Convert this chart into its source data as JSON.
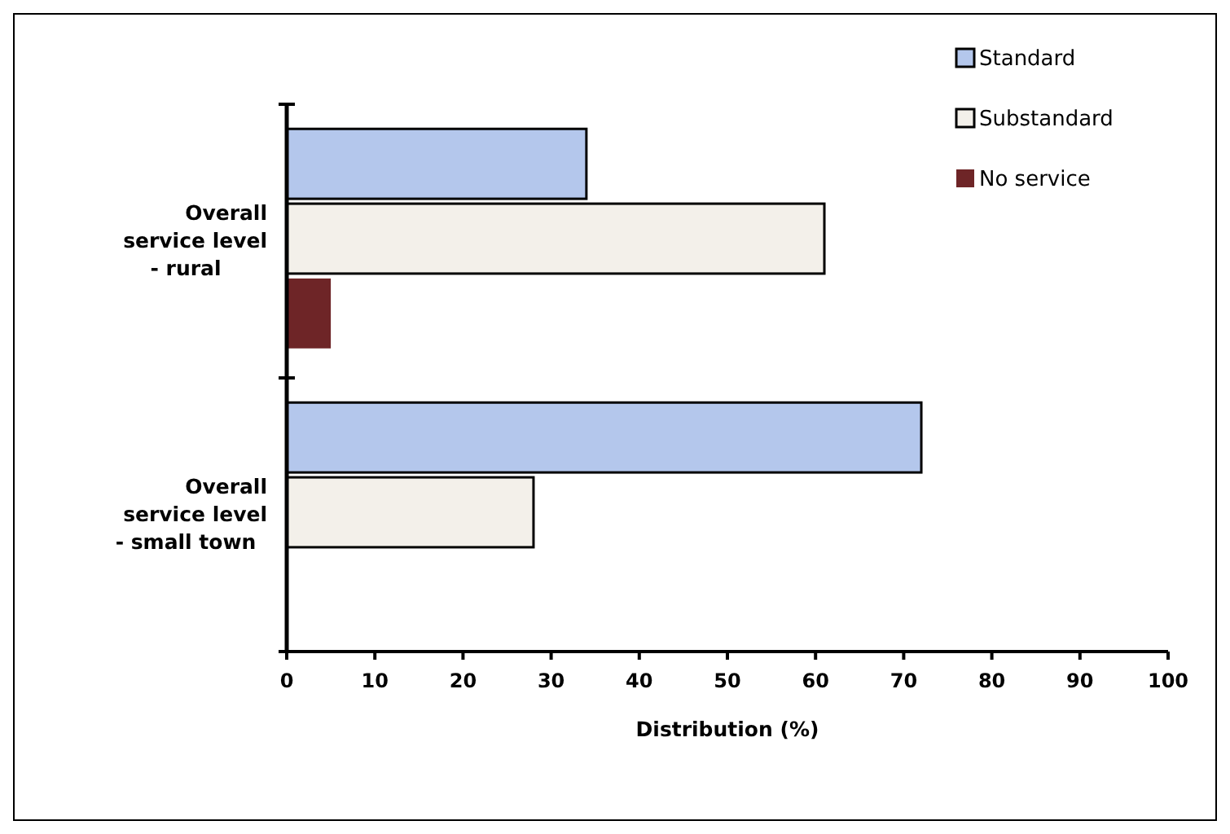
{
  "chart_data": {
    "type": "bar",
    "orientation": "horizontal",
    "xlabel": "Distribution (%)",
    "categories": [
      "Overall service level - rural",
      "Overall service level - small town"
    ],
    "series": [
      {
        "name": "Standard",
        "color": "#b4c7ec",
        "values": [
          34,
          72
        ]
      },
      {
        "name": "Substandard",
        "color": "#f3f0ea",
        "values": [
          61,
          28
        ]
      },
      {
        "name": "No service",
        "color": "#6e2527",
        "values": [
          5,
          null
        ]
      }
    ],
    "xlim": [
      0,
      100
    ],
    "xticks": [
      0,
      10,
      20,
      30,
      40,
      50,
      60,
      70,
      80,
      90,
      100
    ],
    "legend": "top right",
    "grid": false
  }
}
